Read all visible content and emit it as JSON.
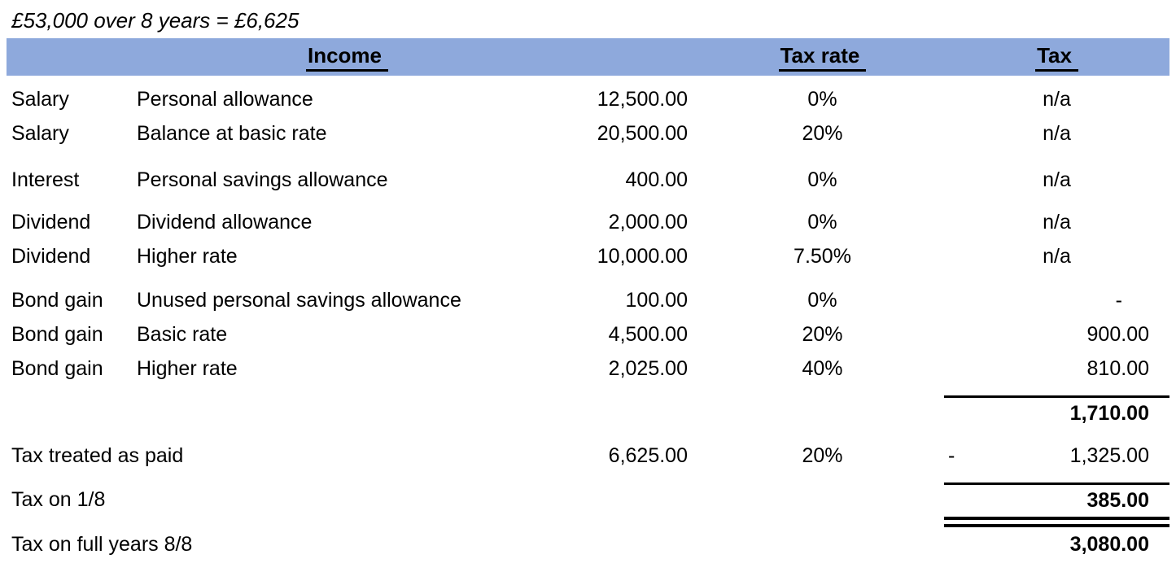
{
  "title": "£53,000 over 8 years = £6,625",
  "colors": {
    "header_bg": "#8EA9DC"
  },
  "table": {
    "headers": {
      "income": "Income",
      "tax_rate": "Tax rate",
      "tax": "Tax"
    },
    "rows": [
      {
        "category": "Salary",
        "description": "Personal allowance",
        "amount": "12,500.00",
        "rate": "0%",
        "tax": "n/a"
      },
      {
        "category": "Salary",
        "description": "Balance at basic rate",
        "amount": "20,500.00",
        "rate": "20%",
        "tax": "n/a"
      },
      {
        "category": "Interest",
        "description": "Personal savings allowance",
        "amount": "400.00",
        "rate": "0%",
        "tax": "n/a"
      },
      {
        "category": "Dividend",
        "description": "Dividend allowance",
        "amount": "2,000.00",
        "rate": "0%",
        "tax": "n/a"
      },
      {
        "category": "Dividend",
        "description": "Higher rate",
        "amount": "10,000.00",
        "rate": "7.50%",
        "tax": "n/a"
      },
      {
        "category": "Bond gain",
        "description": "Unused personal savings allowance",
        "amount": "100.00",
        "rate": "0%",
        "tax": "-"
      },
      {
        "category": "Bond gain",
        "description": "Basic rate",
        "amount": "4,500.00",
        "rate": "20%",
        "tax": "900.00"
      },
      {
        "category": "Bond gain",
        "description": "Higher rate",
        "amount": "2,025.00",
        "rate": "40%",
        "tax": "810.00"
      }
    ],
    "subtotal_tax": "1,710.00",
    "tax_treated_as_paid": {
      "label": "Tax treated as paid",
      "amount": "6,625.00",
      "rate": "20%",
      "sign": "-",
      "tax": "1,325.00"
    },
    "tax_on_one_eighth": {
      "label": "Tax on 1/8",
      "tax": "385.00"
    },
    "tax_on_full_years": {
      "label": "Tax on full years 8/8",
      "tax": "3,080.00"
    }
  }
}
